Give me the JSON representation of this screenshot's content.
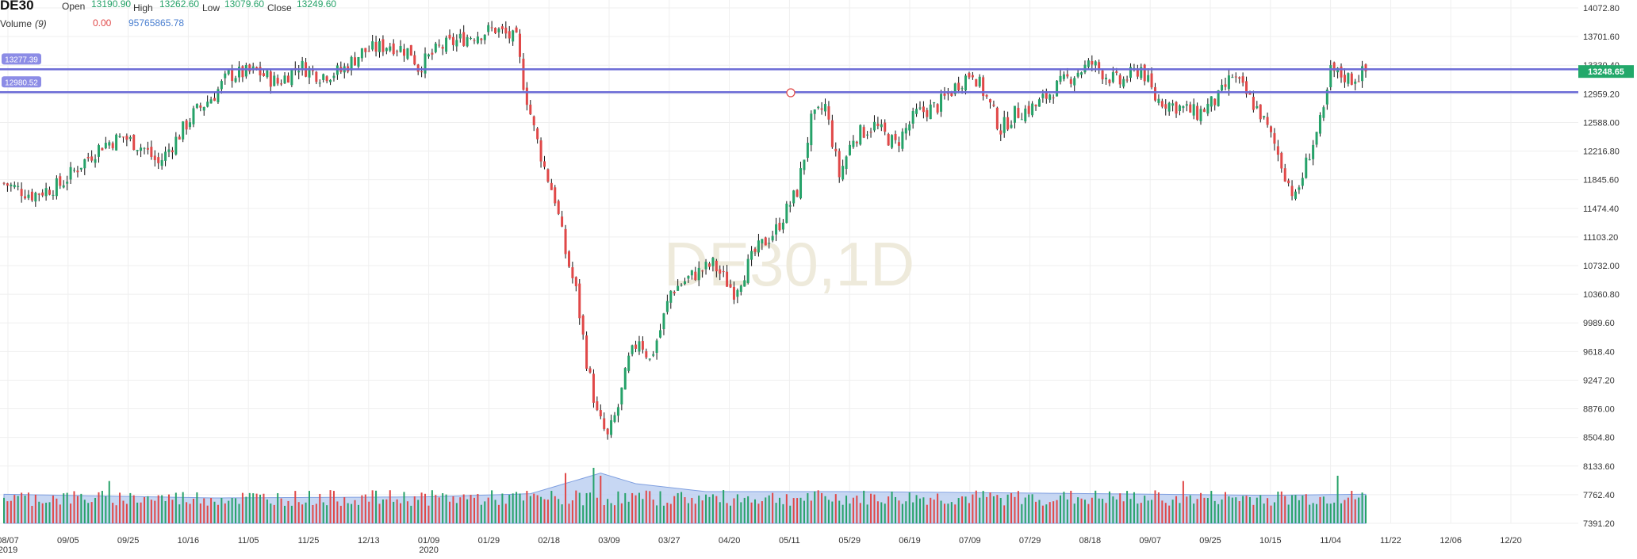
{
  "symbol": "DE30",
  "watermark": "DE30,1D",
  "ohlc": {
    "open_label": "Open",
    "open": "13190.90",
    "high_label": "High",
    "high": "13262.60",
    "low_label": "Low",
    "low": "13079.60",
    "close_label": "Close",
    "close": "13249.60"
  },
  "volume_legend": {
    "label": "Volume",
    "period": "(9)",
    "change": "0.00",
    "value": "95765865.78"
  },
  "price_tag": "13248.65",
  "hlines": [
    {
      "label": "13277.39",
      "value": 13277.39
    },
    {
      "label": "12980.52",
      "value": 12980.52
    }
  ],
  "chart_data": {
    "type": "candlestick",
    "y_ticks": [
      "14072.80",
      "13701.60",
      "13330.40",
      "12959.20",
      "12588.00",
      "12216.80",
      "11845.60",
      "11474.40",
      "11103.20",
      "10732.00",
      "10360.80",
      "9989.60",
      "9618.40",
      "9247.20",
      "8876.00",
      "8504.80",
      "8133.60",
      "7762.40",
      "7391.20"
    ],
    "ylim": [
      7391.2,
      14072.8
    ],
    "x_ticks": [
      {
        "label": "08/07",
        "sub": "2019"
      },
      {
        "label": "09/05"
      },
      {
        "label": "09/25"
      },
      {
        "label": "10/16"
      },
      {
        "label": "11/05"
      },
      {
        "label": "11/25"
      },
      {
        "label": "12/13"
      },
      {
        "label": "01/09",
        "sub": "2020"
      },
      {
        "label": "01/29"
      },
      {
        "label": "02/18"
      },
      {
        "label": "03/09"
      },
      {
        "label": "03/27"
      },
      {
        "label": "04/20"
      },
      {
        "label": "05/11"
      },
      {
        "label": "05/29"
      },
      {
        "label": "06/19"
      },
      {
        "label": "07/09"
      },
      {
        "label": "07/29"
      },
      {
        "label": "08/18"
      },
      {
        "label": "09/07"
      },
      {
        "label": "09/25"
      },
      {
        "label": "10/15"
      },
      {
        "label": "11/04"
      },
      {
        "label": "11/22"
      },
      {
        "label": "12/06"
      },
      {
        "label": "12/20"
      }
    ],
    "close_path": [
      [
        0,
        11800
      ],
      [
        8,
        11650
      ],
      [
        16,
        11780
      ],
      [
        22,
        12050
      ],
      [
        28,
        12300
      ],
      [
        34,
        12400
      ],
      [
        40,
        12250
      ],
      [
        44,
        12050
      ],
      [
        48,
        12300
      ],
      [
        54,
        12700
      ],
      [
        60,
        12950
      ],
      [
        64,
        13200
      ],
      [
        72,
        13250
      ],
      [
        78,
        13100
      ],
      [
        84,
        13330
      ],
      [
        90,
        13200
      ],
      [
        96,
        13250
      ],
      [
        102,
        13500
      ],
      [
        110,
        13600
      ],
      [
        116,
        13500
      ],
      [
        118,
        13300
      ],
      [
        124,
        13550
      ],
      [
        132,
        13700
      ],
      [
        140,
        13800
      ],
      [
        146,
        13650
      ],
      [
        148,
        13100
      ],
      [
        151,
        12500
      ],
      [
        154,
        12000
      ],
      [
        157,
        11600
      ],
      [
        160,
        10900
      ],
      [
        163,
        10400
      ],
      [
        166,
        9500
      ],
      [
        169,
        8800
      ],
      [
        172,
        8500
      ],
      [
        175,
        8900
      ],
      [
        178,
        9500
      ],
      [
        181,
        9800
      ],
      [
        184,
        9500
      ],
      [
        187,
        9900
      ],
      [
        190,
        10400
      ],
      [
        196,
        10600
      ],
      [
        202,
        10750
      ],
      [
        208,
        10400
      ],
      [
        214,
        10900
      ],
      [
        220,
        11200
      ],
      [
        226,
        11700
      ],
      [
        230,
        12600
      ],
      [
        234,
        12800
      ],
      [
        238,
        11900
      ],
      [
        242,
        12400
      ],
      [
        248,
        12550
      ],
      [
        254,
        12300
      ],
      [
        260,
        12700
      ],
      [
        266,
        12800
      ],
      [
        272,
        13100
      ],
      [
        276,
        13250
      ],
      [
        280,
        12900
      ],
      [
        284,
        12500
      ],
      [
        288,
        12700
      ],
      [
        294,
        12800
      ],
      [
        300,
        13050
      ],
      [
        306,
        13250
      ],
      [
        310,
        13350
      ],
      [
        314,
        13200
      ],
      [
        318,
        13100
      ],
      [
        324,
        13300
      ],
      [
        328,
        12900
      ],
      [
        334,
        12800
      ],
      [
        340,
        12700
      ],
      [
        346,
        12900
      ],
      [
        350,
        13200
      ],
      [
        354,
        12950
      ],
      [
        358,
        12700
      ],
      [
        362,
        12300
      ],
      [
        366,
        11800
      ],
      [
        368,
        11600
      ],
      [
        372,
        12200
      ],
      [
        376,
        12700
      ],
      [
        378,
        13250
      ],
      [
        384,
        13150
      ],
      [
        388,
        13249
      ]
    ],
    "volume": {
      "y_range": [
        0,
        12000000
      ],
      "bar_level": 6000000,
      "bar_spikes": [
        [
          30,
          8000000
        ],
        [
          160,
          9500000
        ],
        [
          168,
          10500000
        ],
        [
          170,
          9000000
        ],
        [
          336,
          8000000
        ],
        [
          380,
          9000000
        ]
      ],
      "ma_path": [
        [
          0,
          5500000
        ],
        [
          60,
          4800000
        ],
        [
          120,
          5000000
        ],
        [
          150,
          5600000
        ],
        [
          170,
          9500000
        ],
        [
          180,
          7500000
        ],
        [
          200,
          6000000
        ],
        [
          240,
          6000000
        ],
        [
          280,
          5800000
        ],
        [
          360,
          5300000
        ],
        [
          388,
          5500000
        ]
      ]
    }
  },
  "colors": {
    "up": "#26a269",
    "down": "#e04848",
    "hline": "#6b6bd6",
    "hline_tag": "#8c8ce6",
    "price_tag": "#22a86a",
    "volume_fill": "#b9cdf0",
    "grid": "#efefef"
  }
}
